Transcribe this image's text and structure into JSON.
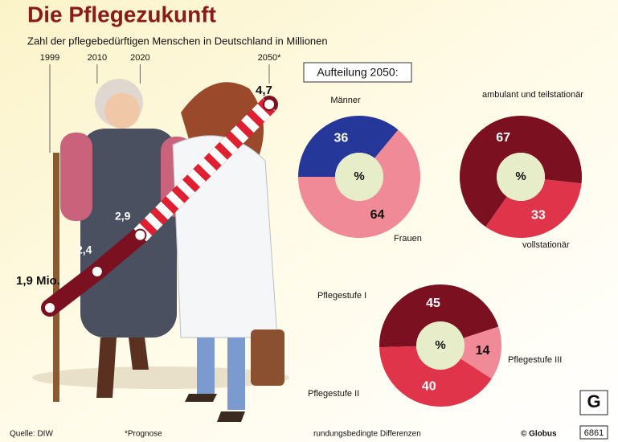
{
  "header": {
    "title": "Die Pflegezukunft",
    "panel_title": "Aufteilung 2050:"
  },
  "chart_data": [
    {
      "type": "line",
      "title": "Zahl der pflegebedürftigen Menschen in Deutschland in Millionen",
      "x": [
        1999,
        2010,
        2020,
        2050
      ],
      "xticks": [
        1999,
        2010,
        2020,
        {
          "value": 2050,
          "label": "2050*"
        }
      ],
      "values": [
        1.9,
        2.4,
        2.9,
        4.7
      ],
      "value_labels": [
        "1,9 Mio.",
        "2,4",
        "2,9",
        "4,7"
      ],
      "color": "#7a1020"
    },
    {
      "type": "pie",
      "center_label": "%",
      "categories": [
        "Männer",
        "Frauen"
      ],
      "values": [
        36,
        64
      ],
      "colors": [
        "#26379a",
        "#f08a96"
      ]
    },
    {
      "type": "pie",
      "center_label": "%",
      "categories": [
        "ambulant und teilstationär",
        "vollstationär"
      ],
      "values": [
        67,
        33
      ],
      "colors": [
        "#7a1020",
        "#e0344a"
      ]
    },
    {
      "type": "pie",
      "center_label": "%",
      "categories": [
        "Pflegestufe I",
        "Pflegestufe II",
        "Pflegestufe III"
      ],
      "values": [
        45,
        40,
        14
      ],
      "colors": [
        "#7a1020",
        "#e0344a",
        "#f08a96"
      ]
    }
  ],
  "footer": {
    "source": "Quelle: DIW",
    "note": "*Prognose",
    "rounding": "rundungsbedingte Differenzen",
    "credit": "© Globus",
    "number": "6861"
  }
}
